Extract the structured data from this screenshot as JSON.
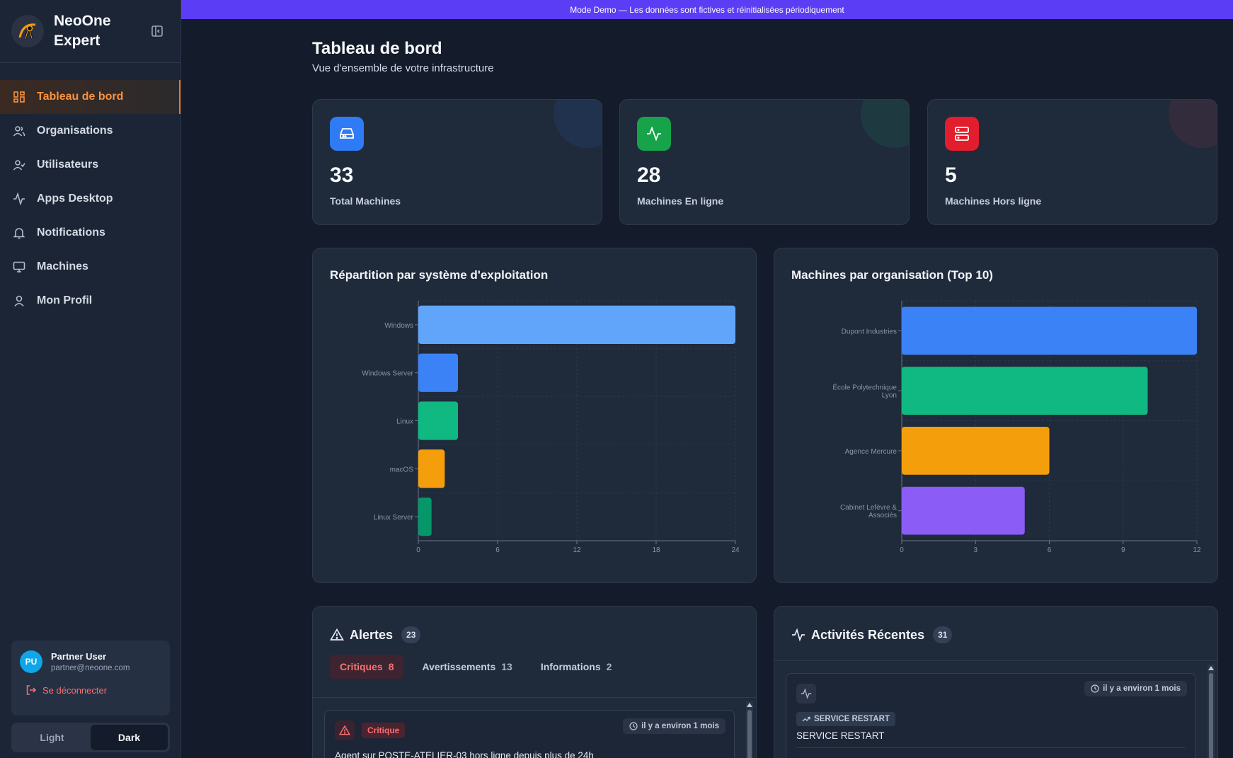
{
  "banner": {
    "text": "Mode Demo — Les données sont fictives et réinitialisées périodiquement"
  },
  "brand": {
    "line1": "NeoOne",
    "line2": "Expert"
  },
  "nav": {
    "items": [
      {
        "label": "Tableau de bord",
        "icon": "dashboard-icon",
        "active": true
      },
      {
        "label": "Organisations",
        "icon": "users-icon"
      },
      {
        "label": "Utilisateurs",
        "icon": "user-check-icon"
      },
      {
        "label": "Apps Desktop",
        "icon": "activity-icon"
      },
      {
        "label": "Notifications",
        "icon": "bell-icon"
      },
      {
        "label": "Machines",
        "icon": "monitor-icon"
      },
      {
        "label": "Mon Profil",
        "icon": "user-icon"
      }
    ]
  },
  "user": {
    "initials": "PU",
    "name": "Partner User",
    "email": "partner@neoone.com",
    "logout_label": "Se déconnecter"
  },
  "theme": {
    "light": "Light",
    "dark": "Dark",
    "selected": "Dark"
  },
  "page": {
    "title": "Tableau de bord",
    "subtitle": "Vue d'ensemble de votre infrastructure"
  },
  "stats": [
    {
      "value": "33",
      "label": "Total Machines",
      "color": "#2f7bf6",
      "icon": "hard-drive-icon"
    },
    {
      "value": "28",
      "label": "Machines En ligne",
      "color": "#16a34a",
      "icon": "activity-icon"
    },
    {
      "value": "5",
      "label": "Machines Hors ligne",
      "color": "#e11d2e",
      "icon": "server-icon"
    }
  ],
  "os_chart": {
    "title": "Répartition par système d'exploitation"
  },
  "org_chart": {
    "title": "Machines par organisation (Top 10)"
  },
  "chart_data": [
    {
      "type": "bar",
      "orientation": "horizontal",
      "title": "Répartition par système d'exploitation",
      "categories": [
        "Windows",
        "Windows Server",
        "Linux",
        "macOS",
        "Linux Server"
      ],
      "values": [
        24,
        3,
        3,
        2,
        1
      ],
      "colors": [
        "#60a5fa",
        "#3b82f6",
        "#10b981",
        "#f59e0b",
        "#059669"
      ],
      "xlim": [
        0,
        24
      ],
      "xticks": [
        "0",
        "6",
        "12",
        "18",
        "24"
      ],
      "grid": true
    },
    {
      "type": "bar",
      "orientation": "horizontal",
      "title": "Machines par organisation (Top 10)",
      "categories": [
        "Dupont Industries",
        "École Polytechnique Lyon",
        "Agence Mercure",
        "Cabinet Lefèvre & Associés"
      ],
      "category_lines": [
        [
          "Dupont Industries"
        ],
        [
          "École Polytechnique",
          "Lyon"
        ],
        [
          "Agence Mercure"
        ],
        [
          "Cabinet Lefèvre &",
          "Associés"
        ]
      ],
      "values": [
        12,
        10,
        6,
        5
      ],
      "colors": [
        "#3b82f6",
        "#10b981",
        "#f59e0b",
        "#8b5cf6"
      ],
      "xlim": [
        0,
        12
      ],
      "xticks": [
        "0",
        "3",
        "6",
        "9",
        "12"
      ],
      "grid": true
    }
  ],
  "alerts": {
    "title": "Alertes",
    "count": "23",
    "tabs": [
      {
        "label": "Critiques",
        "count": "8",
        "active": true
      },
      {
        "label": "Avertissements",
        "count": "13"
      },
      {
        "label": "Informations",
        "count": "2"
      }
    ],
    "first": {
      "severity": "Critique",
      "time": "il y a environ 1 mois",
      "text": "Agent sur POSTE-ATELIER-03 hors ligne depuis plus de 24h"
    }
  },
  "activities": {
    "title": "Activités Récentes",
    "count": "31",
    "first": {
      "time": "il y a environ 1 mois",
      "type": "SERVICE RESTART",
      "text": "SERVICE RESTART"
    }
  }
}
